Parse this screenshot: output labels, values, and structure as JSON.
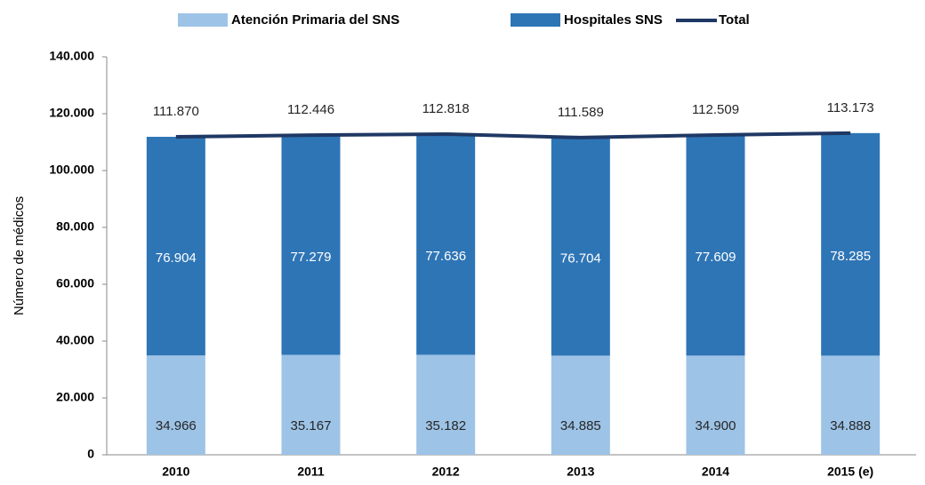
{
  "chart_data": {
    "type": "bar",
    "stacked": true,
    "y_label": "Número de médicos",
    "categories": [
      "2010",
      "2011",
      "2012",
      "2013",
      "2014",
      "2015 (e)"
    ],
    "series": [
      {
        "name": "Atención Primaria del SNS",
        "color": "#9dc3e6",
        "values": [
          34966,
          35167,
          35182,
          34885,
          34900,
          34888
        ],
        "value_labels": [
          "34.966",
          "35.167",
          "35.182",
          "34.885",
          "34.900",
          "34.888"
        ]
      },
      {
        "name": "Hospitales SNS",
        "color": "#2e75b6",
        "values": [
          76904,
          77279,
          77636,
          76704,
          77609,
          78285
        ],
        "value_labels": [
          "76.904",
          "77.279",
          "77.636",
          "76.704",
          "77.609",
          "78.285"
        ]
      },
      {
        "name": "Total",
        "color": "#1f3864",
        "type": "line",
        "values": [
          111870,
          112446,
          112818,
          111589,
          112509,
          113173
        ],
        "value_labels": [
          "111.870",
          "112.446",
          "112.818",
          "111.589",
          "112.509",
          "113.173"
        ]
      }
    ],
    "ylim": [
      0,
      140000
    ],
    "yticks": [
      0,
      {
        "value": 20000,
        "label": "20.000"
      },
      {
        "value": 40000,
        "label": "40.000"
      },
      {
        "value": 60000,
        "label": "60.000"
      },
      {
        "value": 80000,
        "label": "80.000"
      },
      {
        "value": 100000,
        "label": "100.000"
      },
      {
        "value": 120000,
        "label": "120.000"
      },
      {
        "value": 140000,
        "label": "140.000"
      }
    ],
    "legend": "top",
    "grid": false
  }
}
